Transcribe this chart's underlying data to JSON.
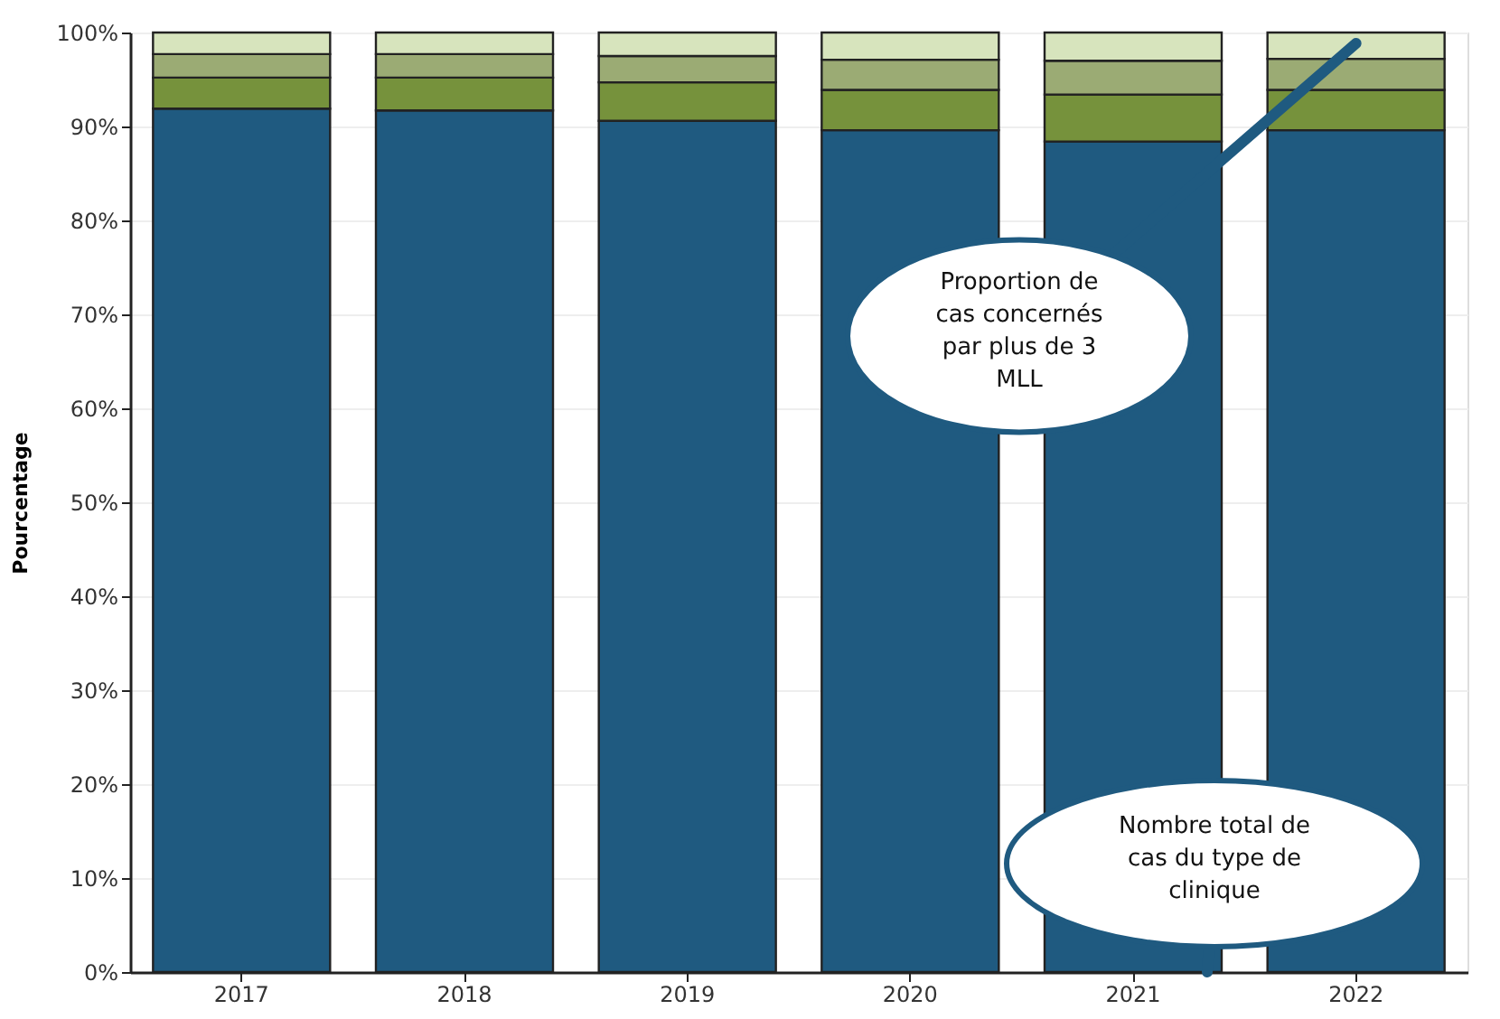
{
  "chart_data": {
    "type": "bar",
    "stacked": true,
    "ylabel": "Pourcentage",
    "categories": [
      "2017",
      "2018",
      "2019",
      "2020",
      "2021",
      "2022"
    ],
    "series": [
      {
        "color": "#1f5a80",
        "values": [
          91.9,
          91.7,
          90.6,
          89.6,
          88.4,
          89.6
        ]
      },
      {
        "color": "#76923c",
        "values": [
          3.3,
          3.5,
          4.1,
          4.3,
          5.0,
          4.3
        ]
      },
      {
        "color": "#9bab74",
        "values": [
          2.5,
          2.5,
          2.8,
          3.2,
          3.6,
          3.3
        ]
      },
      {
        "color": "#d7e4bd",
        "values": [
          2.3,
          2.3,
          2.5,
          2.9,
          3.0,
          2.8
        ]
      }
    ],
    "ylim": [
      0,
      100
    ],
    "yticks": [
      {
        "value": 0,
        "label": "0%"
      },
      {
        "value": 10,
        "label": "10%"
      },
      {
        "value": 20,
        "label": "20%"
      },
      {
        "value": 30,
        "label": "30%"
      },
      {
        "value": 40,
        "label": "40%"
      },
      {
        "value": 50,
        "label": "50%"
      },
      {
        "value": 60,
        "label": "60%"
      },
      {
        "value": 70,
        "label": "70%"
      },
      {
        "value": 80,
        "label": "80%"
      },
      {
        "value": 90,
        "label": "90%"
      },
      {
        "value": 100,
        "label": "100%"
      }
    ],
    "grid": "y",
    "legend": false,
    "annotations": [
      "Proportion de cas concernés par plus de 3 MLL",
      "Nombre total de cas du type de clinique"
    ]
  }
}
